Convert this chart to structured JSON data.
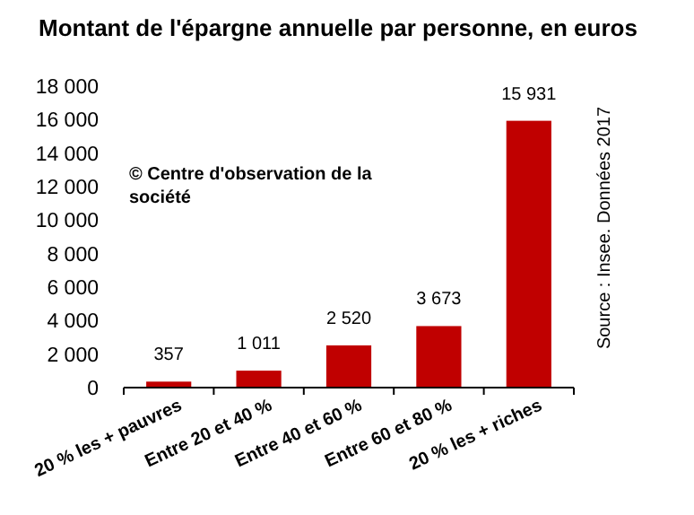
{
  "chart_data": {
    "type": "bar",
    "title": "Montant de l'épargne annuelle par personne, en euros",
    "categories": [
      "20 % les + pauvres",
      "Entre 20 et 40 %",
      "Entre 40 et 60 %",
      "Entre 60 et 80 %",
      "20 % les + riches"
    ],
    "values": [
      357,
      1011,
      2520,
      3673,
      15931
    ],
    "value_labels": [
      "357",
      "1 011",
      "2 520",
      "3 673",
      "15 931"
    ],
    "color": "#c00000",
    "ylim": [
      0,
      18000
    ],
    "yticks": [
      0,
      {
        "value": 2000,
        "label": "2 000"
      },
      {
        "value": 4000,
        "label": "4 000"
      },
      {
        "value": 6000,
        "label": "6 000"
      },
      {
        "value": 8000,
        "label": "8 000"
      },
      {
        "value": 10000,
        "label": "10 000"
      },
      {
        "value": 12000,
        "label": "12 000"
      },
      {
        "value": 14000,
        "label": "14 000"
      },
      {
        "value": 16000,
        "label": "16 000"
      },
      {
        "value": 18000,
        "label": "18 000"
      }
    ],
    "grid": false,
    "annotations": [
      "© Centre d'observation de la société",
      "Source : Insee. Données 2017"
    ]
  }
}
